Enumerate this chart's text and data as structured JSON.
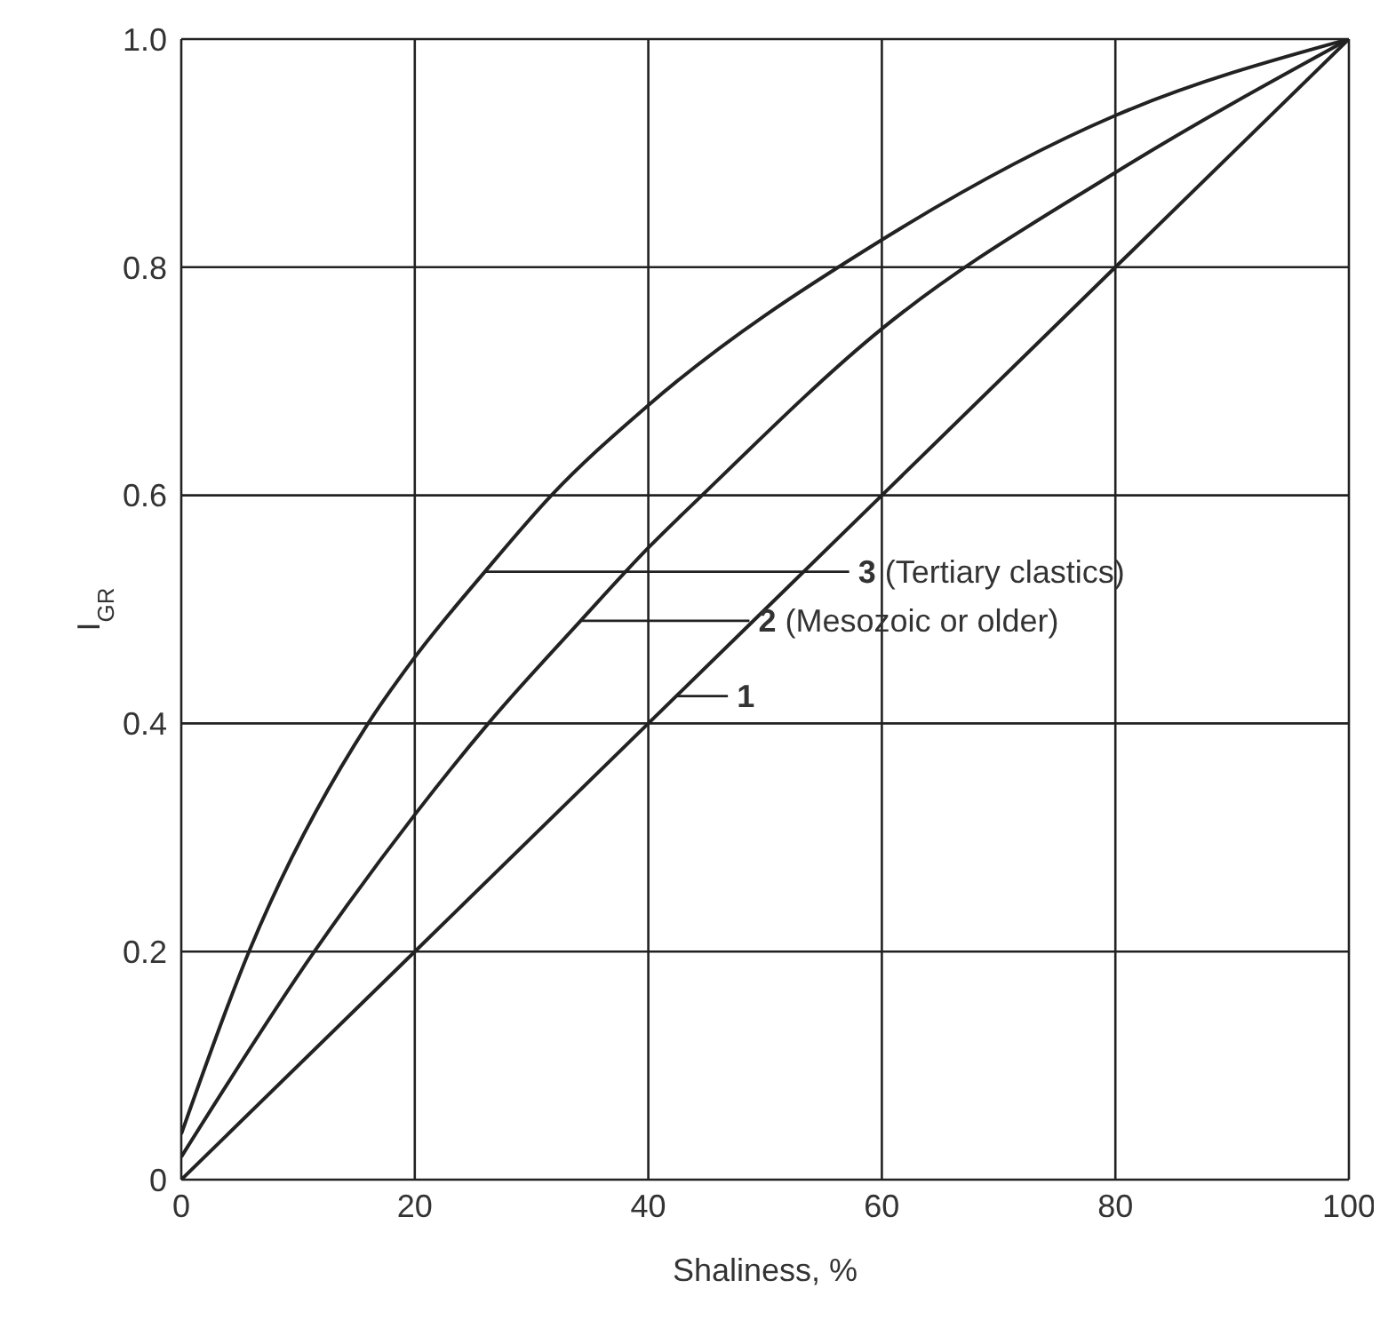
{
  "chart_data": {
    "type": "line",
    "xlabel": "Shaliness, %",
    "ylabel": "I$_{GR}$",
    "xlim": [
      0,
      100
    ],
    "ylim": [
      0,
      1
    ],
    "xticks": [
      0,
      20,
      40,
      60,
      80,
      100
    ],
    "yticks": [
      0,
      0.2,
      0.4,
      0.6,
      0.8,
      {
        "value": 1,
        "label": "1.0"
      }
    ],
    "grid": true,
    "marker": "none",
    "line_style": "solid",
    "series": [
      {
        "color": "#222222",
        "x": [
          0,
          5.8,
          16,
          20,
          26,
          31.7,
          40,
          60,
          80,
          100
        ],
        "values": [
          0.04,
          0.2,
          0.4,
          0.458,
          0.533,
          0.6,
          0.679,
          0.824,
          0.933,
          1
        ]
      },
      {
        "color": "#222222",
        "x": [
          0,
          11.4,
          20,
          26.3,
          34.2,
          40,
          44.6,
          60,
          80,
          100
        ],
        "values": [
          0.02,
          0.2,
          0.32,
          0.4,
          0.49,
          0.554,
          0.6,
          0.746,
          0.883,
          1
        ]
      },
      {
        "color": "#222222",
        "x": [
          0,
          20,
          40,
          60,
          80,
          100
        ],
        "values": [
          0,
          0.2,
          0.4,
          0.6,
          0.8,
          1
        ]
      }
    ],
    "annotations": [
      {
        "text": "3 (Tertiary clastics)",
        "x": 26,
        "y": 0.533
      },
      {
        "text": "2 (Mesozoic or older)",
        "x": 34.2,
        "y": 0.49
      },
      {
        "text": "1",
        "x": 42.4,
        "y": 0.424
      }
    ]
  }
}
